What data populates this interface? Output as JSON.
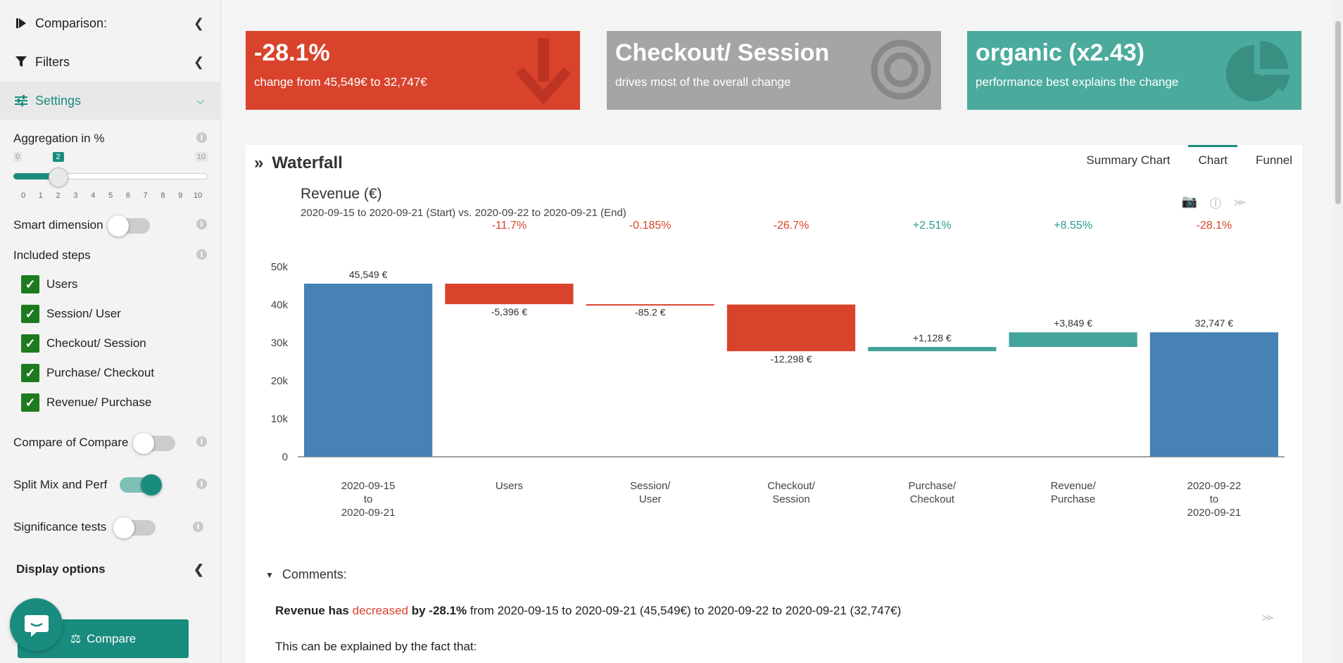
{
  "sidebar": {
    "comparison_label": "Comparison:",
    "filters_label": "Filters",
    "settings_label": "Settings",
    "aggregation_label": "Aggregation in %",
    "slider": {
      "min_label": "0",
      "max_label": "10",
      "current_label": "2",
      "value": 2,
      "max": 10,
      "ticks": [
        "0",
        "1",
        "2",
        "3",
        "4",
        "5",
        "6",
        "7",
        "8",
        "9",
        "10"
      ]
    },
    "smart_dimension_label": "Smart dimension",
    "included_steps_label": "Included steps",
    "steps": [
      {
        "label": "Users",
        "checked": true
      },
      {
        "label": "Session/ User",
        "checked": true
      },
      {
        "label": "Checkout/ Session",
        "checked": true
      },
      {
        "label": "Purchase/ Checkout",
        "checked": true
      },
      {
        "label": "Revenue/ Purchase",
        "checked": true
      }
    ],
    "compare_of_compare_label": "Compare of Compare",
    "split_mix_label": "Split Mix and Perf",
    "significance_label": "Significance tests",
    "display_options_label": "Display options",
    "compare_button_label": "Compare",
    "toggles": {
      "smart_dimension": false,
      "compare_of_compare": false,
      "split_mix": true,
      "significance": false
    }
  },
  "cards": [
    {
      "big": "-28.1%",
      "small": "change from 45,549€ to 32,747€",
      "color": "#d9432c",
      "icon": "arrow-down-icon"
    },
    {
      "big": "Checkout/ Session",
      "small": "drives most of the overall change",
      "color": "#a5a5a5",
      "icon": "target-icon"
    },
    {
      "big": "organic (x2.43)",
      "small": "performance best explains the change",
      "color": "#4aab9c",
      "icon": "pie-icon"
    }
  ],
  "panel": {
    "title": "Waterfall",
    "tabs": [
      "Summary Chart",
      "Chart",
      "Funnel"
    ],
    "active_tab": "Chart"
  },
  "chart_data": {
    "type": "bar",
    "title": "Revenue (€)",
    "subtitle": "2020-09-15 to 2020-09-21 (Start) vs. 2020-09-22 to 2020-09-21 (End)",
    "categories": [
      "2020-09-15\nto\n2020-09-21",
      "Users",
      "Session/\nUser",
      "Checkout/\nSession",
      "Purchase/\nCheckout",
      "Revenue/\nPurchase",
      "2020-09-22\nto\n2020-09-21"
    ],
    "values": [
      45549,
      -5396,
      -85.2,
      -12298,
      1128,
      3849,
      32747
    ],
    "kinds": [
      "total",
      "delta",
      "delta",
      "delta",
      "delta",
      "delta",
      "total"
    ],
    "value_labels": [
      "45,549 €",
      "-5,396 €",
      "-85.2 €",
      "-12,298 €",
      "+1,128 €",
      "+3,849 €",
      "32,747 €"
    ],
    "pct_labels": [
      "",
      "-11.7%",
      "-0.185%",
      "-26.7%",
      "+2.51%",
      "+8.55%",
      "-28.1%"
    ],
    "yticks": [
      "0",
      "10k",
      "20k",
      "30k",
      "40k",
      "50k"
    ],
    "ylim": [
      0,
      50000
    ],
    "colors": {
      "total": "#4682b4",
      "negative": "#d9432c",
      "positive": "#44a39a",
      "pct_negative": "#d9432c",
      "pct_positive": "#2a9d8f"
    }
  },
  "comments": {
    "header": "Comments:",
    "line1_prefix": "Revenue has ",
    "line1_word": "decreased",
    "line1_mid": " by -28.1%",
    "line1_rest": " from 2020-09-15 to 2020-09-21 (45,549€) to 2020-09-22 to 2020-09-21 (32,747€)",
    "line2": "This can be explained by the fact that:"
  }
}
